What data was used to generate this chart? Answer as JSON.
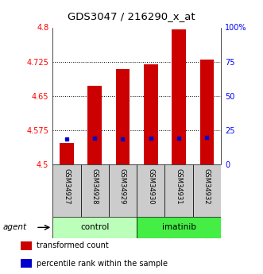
{
  "title": "GDS3047 / 216290_x_at",
  "samples": [
    "GSM34927",
    "GSM34928",
    "GSM34929",
    "GSM34930",
    "GSM34931",
    "GSM34932"
  ],
  "bar_values": [
    4.547,
    4.673,
    4.708,
    4.719,
    4.795,
    4.73
  ],
  "percentile_values": [
    4.556,
    4.558,
    4.556,
    4.557,
    4.557,
    4.56
  ],
  "y_min": 4.5,
  "y_max": 4.8,
  "y_ticks": [
    4.5,
    4.575,
    4.65,
    4.725,
    4.8
  ],
  "y_tick_labels": [
    "4.5",
    "4.575",
    "4.65",
    "4.725",
    "4.8"
  ],
  "right_y_ticks": [
    0,
    25,
    50,
    75,
    100
  ],
  "right_y_tick_labels": [
    "0",
    "25",
    "50",
    "75",
    "100%"
  ],
  "bar_color": "#cc0000",
  "percentile_color": "#0000cc",
  "groups": [
    {
      "label": "control",
      "indices": [
        0,
        1,
        2
      ],
      "color": "#bbffbb"
    },
    {
      "label": "imatinib",
      "indices": [
        3,
        4,
        5
      ],
      "color": "#44ee44"
    }
  ],
  "agent_label": "agent",
  "legend_items": [
    {
      "color": "#cc0000",
      "label": "transformed count"
    },
    {
      "color": "#0000cc",
      "label": "percentile rank within the sample"
    }
  ],
  "bar_width": 0.5,
  "title_fontsize": 9.5,
  "tick_fontsize": 7,
  "label_fontsize": 7,
  "sample_fontsize": 6,
  "group_fontsize": 7.5,
  "agent_fontsize": 7.5,
  "legend_fontsize": 7
}
